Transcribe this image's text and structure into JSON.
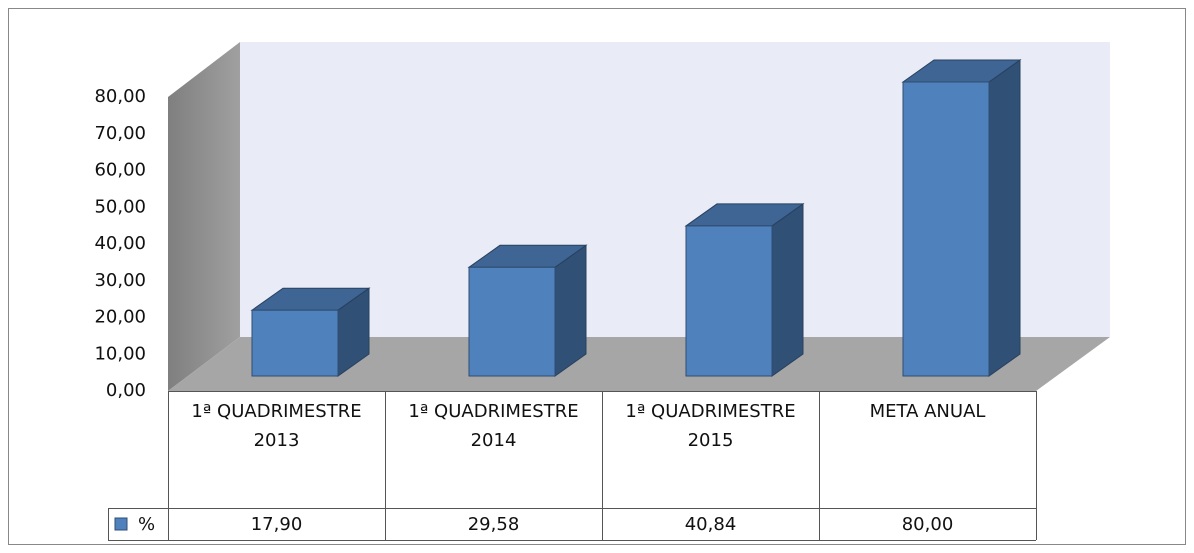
{
  "chart_data": {
    "type": "bar3d",
    "categories": [
      "1ª QUADRIMESTRE 2013",
      "1ª QUADRIMESTRE 2014",
      "1ª QUADRIMESTRE 2015",
      "META ANUAL"
    ],
    "series": [
      {
        "name": "%",
        "color": "#4f81bd",
        "values": [
          17.9,
          29.58,
          40.84,
          80.0
        ],
        "value_labels": [
          "17,90",
          "29,58",
          "40,84",
          "80,00"
        ]
      }
    ],
    "ylim": [
      0,
      80
    ],
    "yticks": [
      {
        "value": 0,
        "label": "0,00"
      },
      {
        "value": 10,
        "label": "10,00"
      },
      {
        "value": 20,
        "label": "20,00"
      },
      {
        "value": 30,
        "label": "30,00"
      },
      {
        "value": 40,
        "label": "40,00"
      },
      {
        "value": 50,
        "label": "50,00"
      },
      {
        "value": 60,
        "label": "60,00"
      },
      {
        "value": 70,
        "label": "70,00"
      },
      {
        "value": 80,
        "label": "80,00"
      }
    ],
    "data_table": true
  }
}
